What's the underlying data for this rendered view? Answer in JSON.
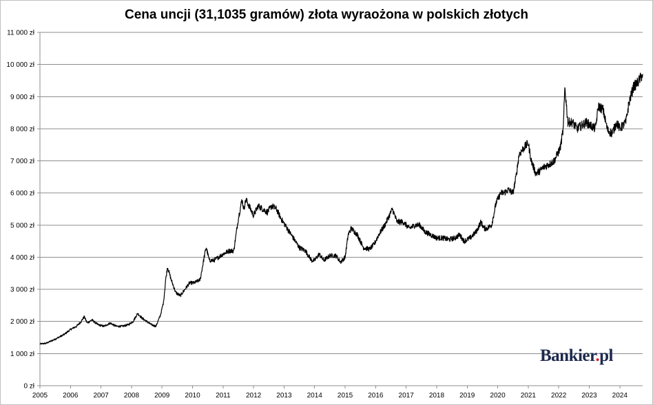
{
  "chart_data": {
    "type": "line",
    "title": "Cena uncji (31,1035 gramów) złota wyraożona w polskich złotych",
    "xlabel": "",
    "ylabel": "",
    "ylim": [
      0,
      11000
    ],
    "xlim": [
      2005,
      2024.75
    ],
    "y_ticks": [
      "0 zł",
      "1 000 zł",
      "2 000 zł",
      "3 000 zł",
      "4 000 zł",
      "5 000 zł",
      "6 000 zł",
      "7 000 zł",
      "8 000 zł",
      "9 000 zł",
      "10 000 zł",
      "11 000 zł"
    ],
    "y_tick_values": [
      0,
      1000,
      2000,
      3000,
      4000,
      5000,
      6000,
      7000,
      8000,
      9000,
      10000,
      11000
    ],
    "x_ticks": [
      "2005",
      "2006",
      "2007",
      "2008",
      "2009",
      "2010",
      "2011",
      "2012",
      "2013",
      "2014",
      "2015",
      "2016",
      "2017",
      "2018",
      "2019",
      "2020",
      "2021",
      "2022",
      "2023",
      "2024"
    ],
    "x_tick_values": [
      2005,
      2006,
      2007,
      2008,
      2009,
      2010,
      2011,
      2012,
      2013,
      2014,
      2015,
      2016,
      2017,
      2018,
      2019,
      2020,
      2021,
      2022,
      2023,
      2024
    ],
    "grid": "horizontal",
    "legend": "none",
    "series": [
      {
        "color": "#000000",
        "x": [
          2005.0,
          2005.2,
          2005.5,
          2005.8,
          2006.0,
          2006.2,
          2006.35,
          2006.45,
          2006.55,
          2006.7,
          2006.9,
          2007.1,
          2007.3,
          2007.5,
          2007.7,
          2007.9,
          2008.05,
          2008.2,
          2008.35,
          2008.5,
          2008.65,
          2008.8,
          2008.95,
          2009.05,
          2009.12,
          2009.18,
          2009.3,
          2009.45,
          2009.6,
          2009.75,
          2009.9,
          2010.05,
          2010.25,
          2010.4,
          2010.45,
          2010.55,
          2010.7,
          2010.85,
          2011.0,
          2011.2,
          2011.35,
          2011.5,
          2011.62,
          2011.68,
          2011.75,
          2011.9,
          2012.0,
          2012.15,
          2012.3,
          2012.45,
          2012.6,
          2012.75,
          2012.9,
          2013.1,
          2013.3,
          2013.5,
          2013.7,
          2013.9,
          2014.0,
          2014.15,
          2014.3,
          2014.5,
          2014.7,
          2014.85,
          2015.0,
          2015.1,
          2015.2,
          2015.4,
          2015.6,
          2015.8,
          2015.95,
          2016.1,
          2016.3,
          2016.45,
          2016.55,
          2016.7,
          2016.9,
          2017.1,
          2017.3,
          2017.45,
          2017.6,
          2017.8,
          2018.0,
          2018.2,
          2018.4,
          2018.6,
          2018.75,
          2018.9,
          2019.1,
          2019.3,
          2019.45,
          2019.55,
          2019.65,
          2019.8,
          2019.95,
          2020.1,
          2020.2,
          2020.35,
          2020.5,
          2020.6,
          2020.7,
          2020.85,
          2021.0,
          2021.1,
          2021.25,
          2021.4,
          2021.5,
          2021.7,
          2021.85,
          2021.95,
          2022.05,
          2022.15,
          2022.2,
          2022.3,
          2022.45,
          2022.6,
          2022.75,
          2022.9,
          2023.05,
          2023.2,
          2023.3,
          2023.45,
          2023.6,
          2023.75,
          2023.9,
          2024.0,
          2024.1,
          2024.2,
          2024.3,
          2024.45,
          2024.6,
          2024.75
        ],
        "values": [
          1300,
          1320,
          1450,
          1600,
          1750,
          1850,
          2000,
          2150,
          1950,
          2050,
          1900,
          1850,
          1950,
          1850,
          1850,
          1900,
          2000,
          2250,
          2100,
          2000,
          1900,
          1850,
          2200,
          2600,
          3300,
          3700,
          3300,
          2900,
          2800,
          3000,
          3200,
          3200,
          3300,
          4100,
          4300,
          3900,
          3900,
          4000,
          4100,
          4200,
          4200,
          5200,
          5800,
          5500,
          5800,
          5500,
          5300,
          5600,
          5500,
          5400,
          5600,
          5500,
          5200,
          4900,
          4600,
          4300,
          4200,
          3900,
          3900,
          4100,
          3900,
          4050,
          4050,
          3850,
          4000,
          4700,
          4900,
          4700,
          4300,
          4250,
          4400,
          4700,
          5000,
          5300,
          5500,
          5100,
          5100,
          4900,
          5000,
          5000,
          4800,
          4700,
          4600,
          4600,
          4550,
          4600,
          4700,
          4500,
          4600,
          4800,
          5100,
          4900,
          4900,
          5000,
          5700,
          6000,
          6000,
          6100,
          6000,
          6500,
          7200,
          7400,
          7550,
          7000,
          6600,
          6700,
          6800,
          6900,
          7000,
          7200,
          7400,
          8000,
          9300,
          8200,
          8200,
          8000,
          8100,
          8200,
          8100,
          8000,
          8700,
          8600,
          7950,
          7850,
          8200,
          8000,
          8100,
          8200,
          8800,
          9300,
          9450,
          9700
        ]
      }
    ]
  },
  "brand": {
    "name": "Bankier",
    "dot": ".",
    "tld": "pl"
  }
}
